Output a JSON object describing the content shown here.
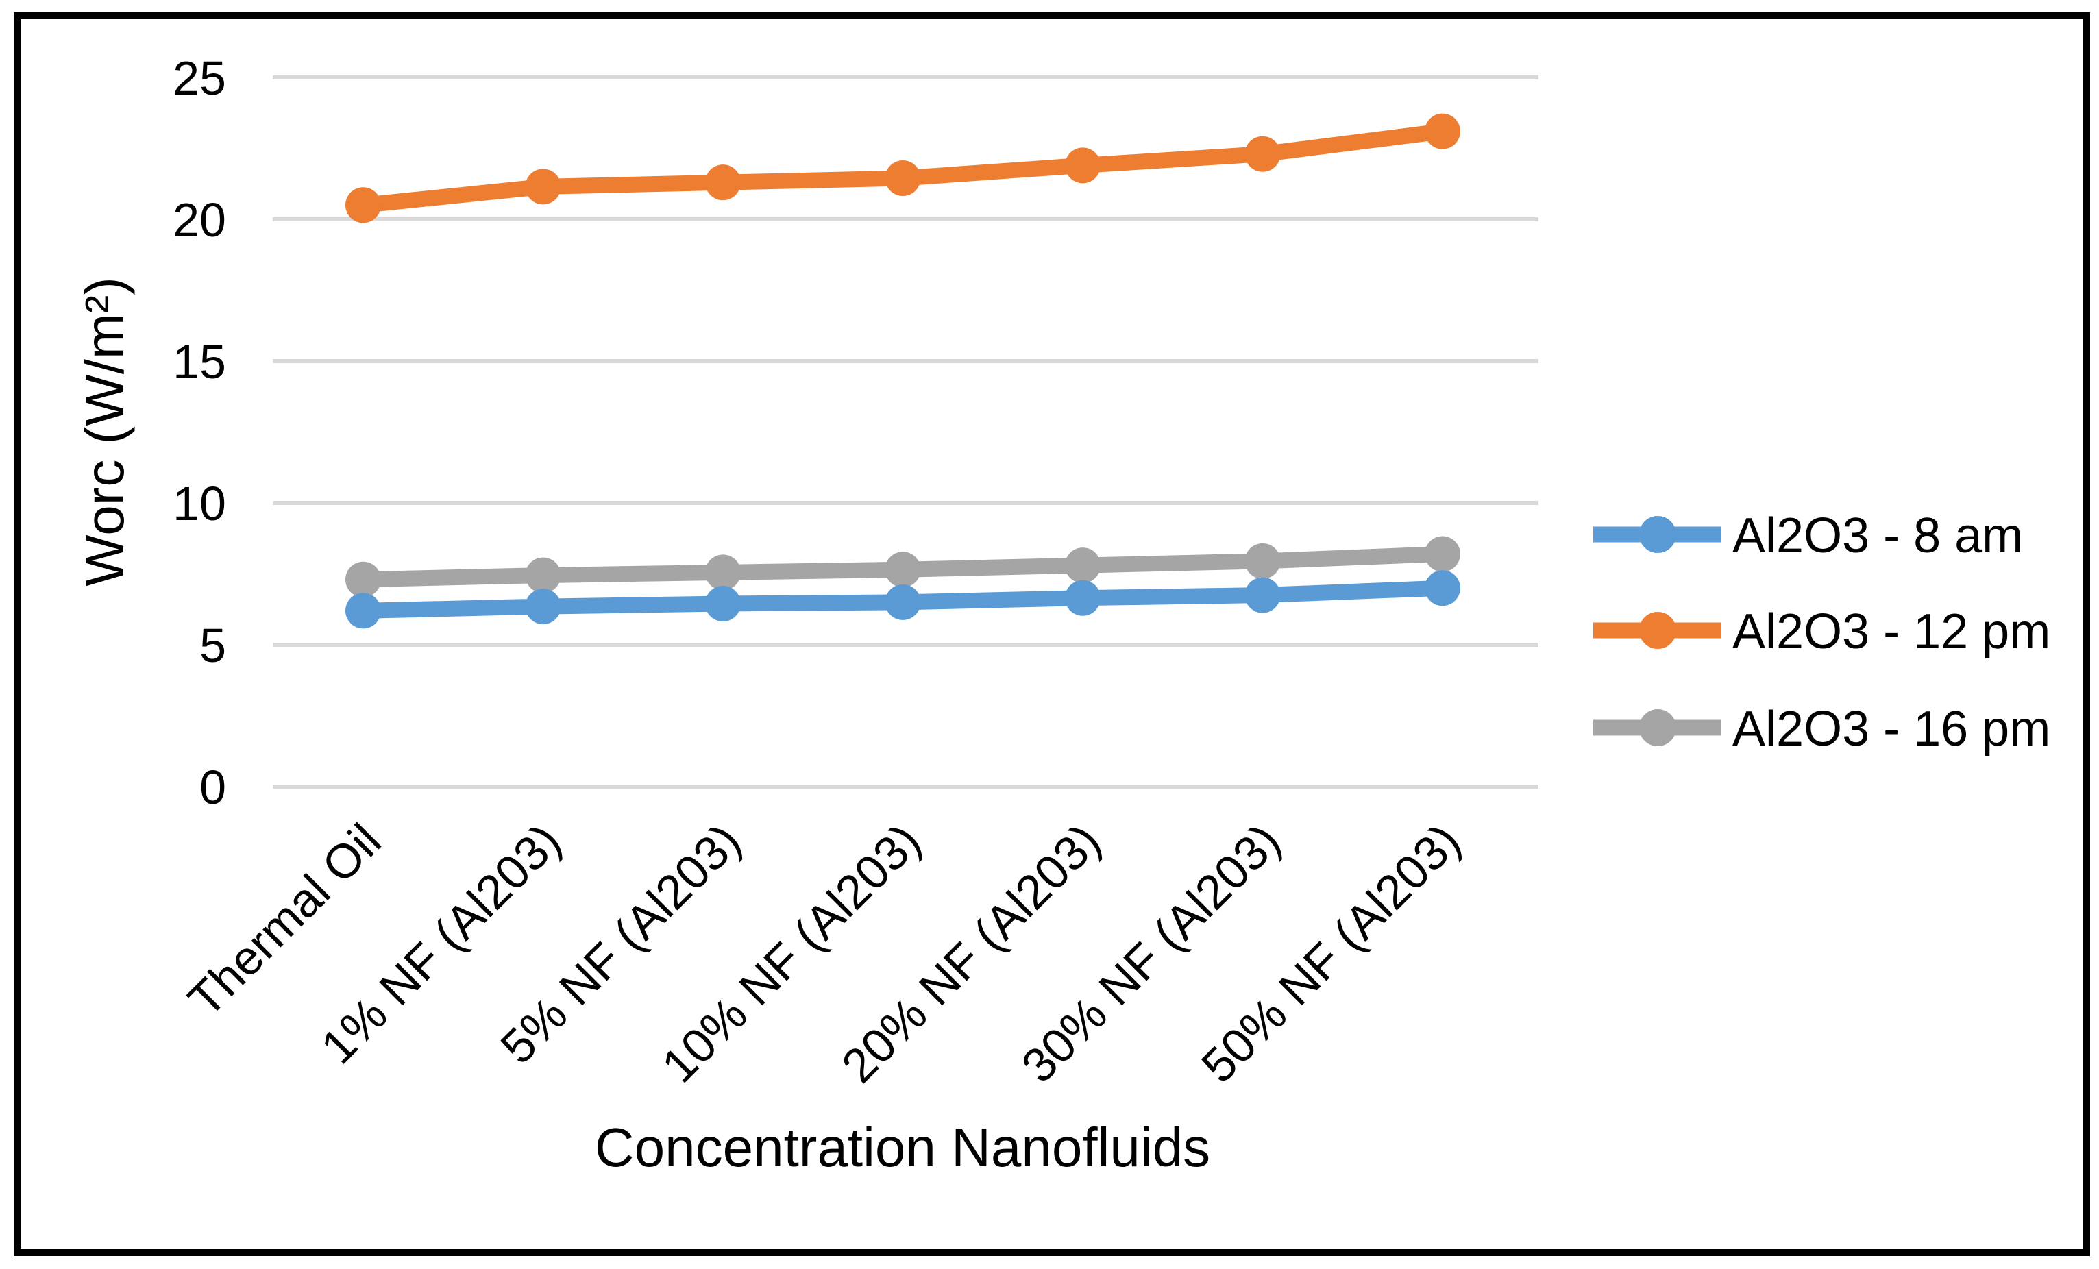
{
  "figure": {
    "background_color": "#FFFFFF",
    "border_color": "#000000",
    "text_color": "#000000",
    "gridline_color": "#D9D9D9"
  },
  "chart_data": {
    "type": "line",
    "title": "",
    "xlabel": "Concentration Nanofluids",
    "ylabel": "Worc (W/m²)",
    "categories": [
      "Thermal Oil",
      "1% NF (Al203)",
      "5% NF (Al203)",
      "10% NF (Al203)",
      "20% NF (Al203)",
      "30% NF (Al203)",
      "50% NF (Al203)"
    ],
    "series": [
      {
        "name": "Al2O3 - 8 am",
        "color": "#5B9BD5",
        "marker": "circle",
        "values": [
          6.2,
          6.35,
          6.45,
          6.5,
          6.65,
          6.75,
          7.0
        ]
      },
      {
        "name": "Al2O3 - 12 pm",
        "color": "#ED7D31",
        "marker": "circle",
        "values": [
          20.5,
          21.15,
          21.3,
          21.45,
          21.9,
          22.3,
          23.1
        ]
      },
      {
        "name": "Al2O3 - 16 pm",
        "color": "#A5A5A5",
        "marker": "circle",
        "values": [
          7.3,
          7.45,
          7.55,
          7.65,
          7.8,
          7.95,
          8.2
        ]
      }
    ],
    "yticks": [
      0,
      5,
      10,
      15,
      20,
      25
    ],
    "ylim": [
      0,
      25
    ],
    "grid": true,
    "legend_position": "right"
  }
}
